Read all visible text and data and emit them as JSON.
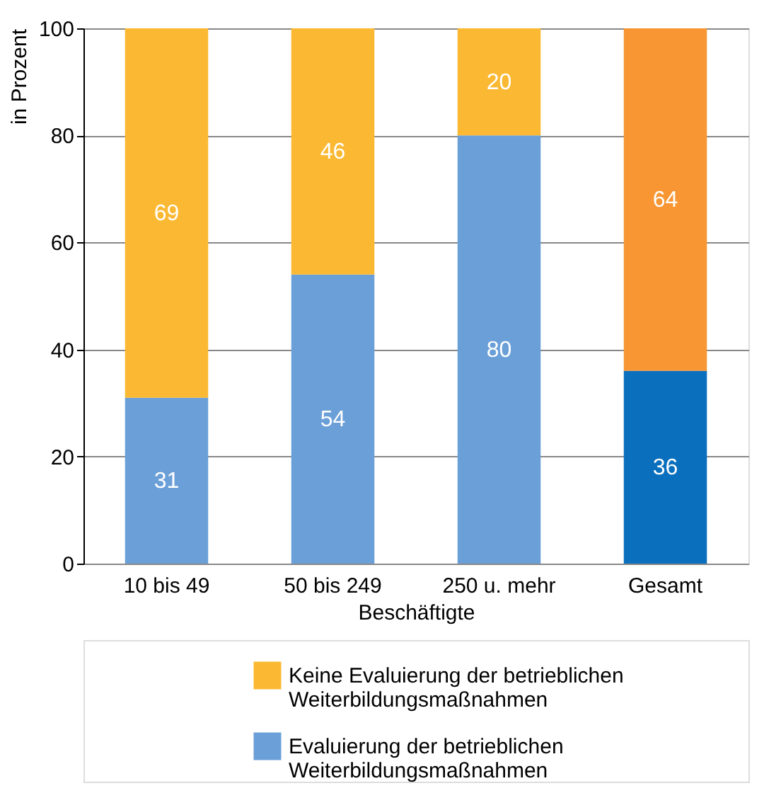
{
  "chart_data": {
    "type": "bar",
    "stacked": true,
    "xlabel": "Beschäftigte",
    "ylabel": "in Prozent",
    "categories": [
      "10 bis 49",
      "50 bis 249",
      "250 u. mehr",
      "Gesamt"
    ],
    "series": [
      {
        "name": "Evaluierung der betrieblichen Weiterbildungsmaßnahmen",
        "color": "#6a9fd8",
        "colors": [
          "#6a9fd8",
          "#6a9fd8",
          "#6a9fd8",
          "#0a6fbd"
        ],
        "values": [
          31,
          54,
          80,
          36
        ]
      },
      {
        "name": "Keine Evaluierung der betrieblichen Weiterbildungsmaßnahmen",
        "color": "#fbb933",
        "colors": [
          "#fbb933",
          "#fbb933",
          "#fbb933",
          "#f79633"
        ],
        "values": [
          69,
          46,
          20,
          64
        ]
      }
    ],
    "ylim": [
      0,
      100
    ],
    "yticks": [
      0,
      20,
      40,
      60,
      80,
      100
    ],
    "grid": "y",
    "data_labels": true,
    "legend": "bottom"
  }
}
